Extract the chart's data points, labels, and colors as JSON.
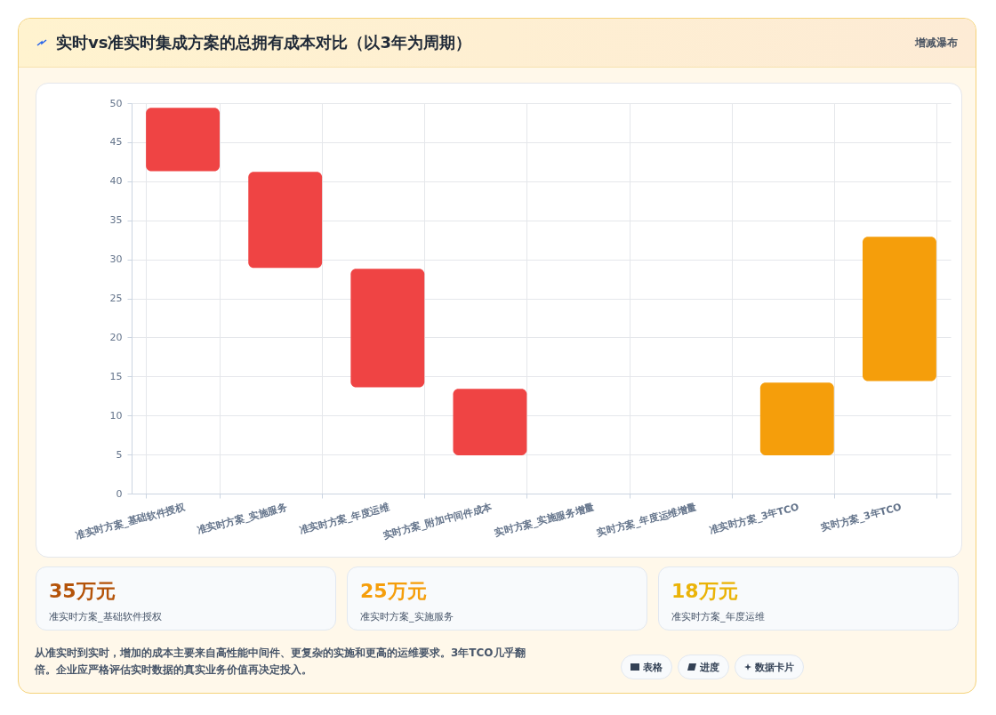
{
  "chart_data": {
    "type": "bar",
    "title": "实时vs准实时集成方案的总拥有成本对比（以3年为周期）",
    "categories": [
      "准实时方案_基础软件授权",
      "准实时方案_实施服务",
      "准实时方案_年度运维",
      "实时方案_附加中间件成本",
      "实时方案_实施服务增量",
      "实时方案_年度运维增量",
      "准实时方案_3年TCO",
      "实时方案_3年TCO"
    ],
    "values": [
      8.1,
      12.3,
      15.2,
      8.5,
      null,
      null,
      9.3,
      18.5
    ],
    "base": [
      41.3,
      28.9,
      13.6,
      4.9,
      null,
      null,
      4.9,
      14.4
    ],
    "colors": [
      "#ef4444",
      "#ef4444",
      "#ef4444",
      "#ef4444",
      null,
      null,
      "#f59e0b",
      "#f59e0b"
    ],
    "ylim": [
      0,
      50
    ],
    "yticks": [
      0,
      5,
      10,
      15,
      20,
      25,
      30,
      35,
      40,
      45,
      50
    ],
    "grid": true,
    "annotations": [
      "增减瀑布",
      "35万元",
      "准实时方案_基础软件授权",
      "25万元",
      "准实时方案_实施服务",
      "18万元",
      "准实时方案_年度运维",
      "从准实时到实时，增加的成本主要来自高性能中间件、更复杂的实施和更高的运维要求。3年TCO几乎翻倍。企业应严格评估实时数据的真实业务价值再决定投入。",
      "表格",
      "进度",
      "数据卡片"
    ]
  }
}
